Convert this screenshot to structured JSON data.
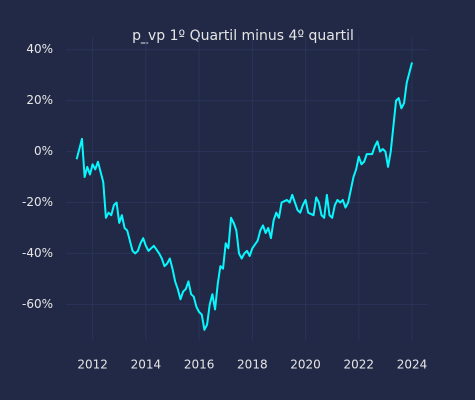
{
  "chart_data": {
    "type": "line",
    "title": "p_vp 1º Quartil minus 4º quartil",
    "background": "#212946",
    "grid": true,
    "grid_color": "#2a3459",
    "x": [
      2011.4,
      2011.55,
      2011.6,
      2011.7,
      2011.8,
      2011.9,
      2012.0,
      2012.1,
      2012.2,
      2012.3,
      2012.4,
      2012.5,
      2012.6,
      2012.7,
      2012.8,
      2012.9,
      2013.0,
      2013.1,
      2013.2,
      2013.3,
      2013.4,
      2013.5,
      2013.6,
      2013.7,
      2013.8,
      2013.9,
      2014.0,
      2014.1,
      2014.2,
      2014.3,
      2014.5,
      2014.6,
      2014.7,
      2014.8,
      2014.9,
      2015.0,
      2015.1,
      2015.2,
      2015.3,
      2015.4,
      2015.5,
      2015.6,
      2015.7,
      2015.8,
      2015.9,
      2016.0,
      2016.1,
      2016.2,
      2016.3,
      2016.4,
      2016.5,
      2016.6,
      2016.7,
      2016.8,
      2016.9,
      2017.0,
      2017.1,
      2017.2,
      2017.3,
      2017.4,
      2017.5,
      2017.6,
      2017.7,
      2017.8,
      2017.9,
      2018.0,
      2018.2,
      2018.3,
      2018.4,
      2018.5,
      2018.6,
      2018.7,
      2018.8,
      2018.9,
      2019.0,
      2019.1,
      2019.3,
      2019.4,
      2019.5,
      2019.6,
      2019.7,
      2019.8,
      2019.9,
      2020.0,
      2020.1,
      2020.3,
      2020.4,
      2020.5,
      2020.6,
      2020.7,
      2020.8,
      2020.9,
      2021.0,
      2021.1,
      2021.2,
      2021.3,
      2021.4,
      2021.5,
      2021.6,
      2021.7,
      2021.8,
      2021.9,
      2022.0,
      2022.1,
      2022.2,
      2022.3,
      2022.5,
      2022.6,
      2022.7,
      2022.8,
      2022.9,
      2023.0,
      2023.1,
      2023.2,
      2023.3,
      2023.4,
      2023.5,
      2023.6,
      2023.7,
      2023.8,
      2024.0
    ],
    "series": [
      {
        "color": "#08f7fe",
        "values": [
          -3,
          3,
          5,
          -10,
          -6,
          -9,
          -5,
          -7,
          -4,
          -8,
          -12,
          -26,
          -24,
          -25,
          -21,
          -20,
          -28,
          -25,
          -30,
          -31,
          -35,
          -39,
          -40,
          -39,
          -36,
          -34,
          -37,
          -39,
          -38,
          -37,
          -40,
          -42,
          -45,
          -44,
          -42,
          -46,
          -51,
          -54,
          -58,
          -55,
          -54,
          -51,
          -56,
          -57,
          -61,
          -63,
          -64,
          -70,
          -68,
          -60,
          -56,
          -62,
          -52,
          -45,
          -46,
          -36,
          -38,
          -26,
          -28,
          -31,
          -40,
          -42,
          -40,
          -39,
          -41,
          -38,
          -35,
          -31,
          -29,
          -32,
          -30,
          -34,
          -27,
          -24,
          -26,
          -20,
          -19,
          -20,
          -17,
          -20,
          -23,
          -24,
          -21,
          -19,
          -24,
          -25,
          -18,
          -20,
          -25,
          -26,
          -17,
          -25,
          -26,
          -21,
          -19,
          -20,
          -19,
          -22,
          -20,
          -15,
          -10,
          -7,
          -2,
          -5,
          -4,
          -1,
          -1,
          2,
          4,
          0,
          1,
          0,
          -6,
          0,
          10,
          20,
          21,
          17,
          19,
          27,
          35
        ]
      }
    ],
    "xlim": [
      2011.0,
      2024.6
    ],
    "xticks": [
      2012,
      2014,
      2016,
      2018,
      2020,
      2022,
      2024
    ],
    "ylim": [
      -74,
      45
    ],
    "yticks": [
      {
        "value": -60,
        "label": "-60%"
      },
      {
        "value": -40,
        "label": "-40%"
      },
      {
        "value": -20,
        "label": "-20%"
      },
      {
        "value": 0,
        "label": "0%"
      },
      {
        "value": 20,
        "label": "20%"
      },
      {
        "value": 40,
        "label": "40%"
      }
    ]
  }
}
